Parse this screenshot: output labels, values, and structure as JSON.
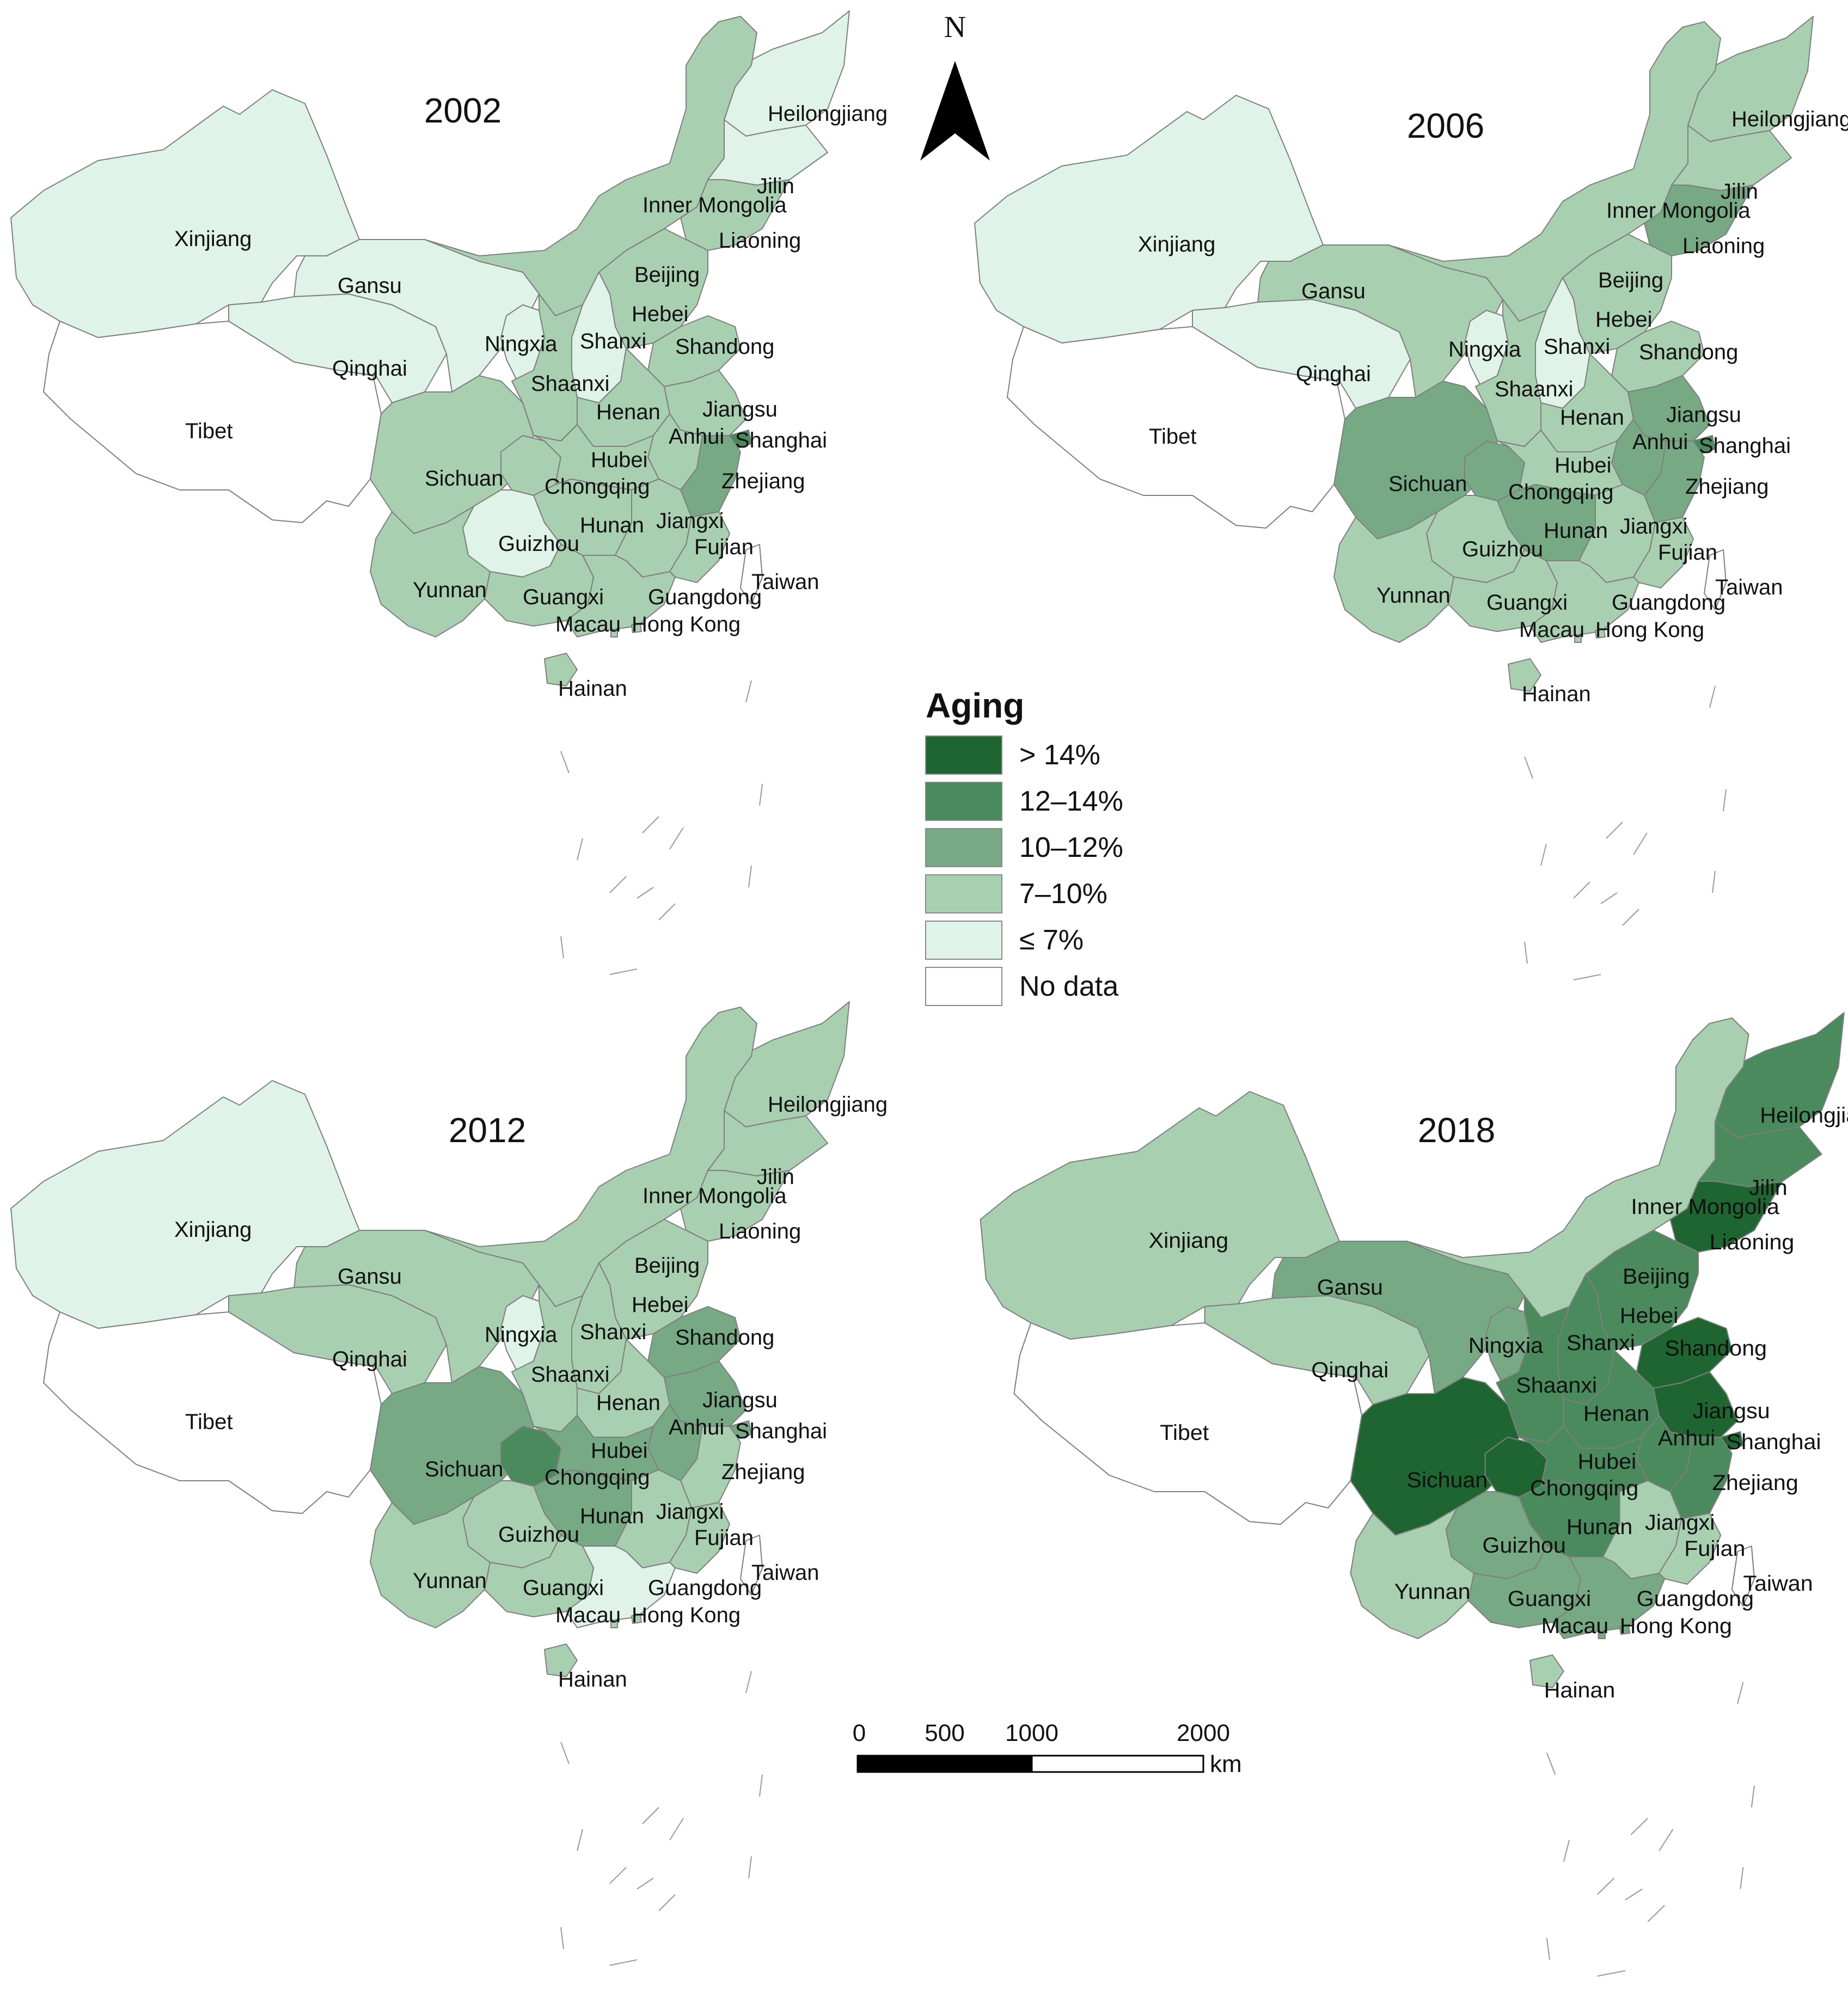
{
  "legend": {
    "title": "Aging",
    "classes": [
      {
        "label": "> 14%",
        "color": "#1f6531"
      },
      {
        "label": "12–14%",
        "color": "#4a8a5d"
      },
      {
        "label": "10–12%",
        "color": "#77a985"
      },
      {
        "label": "7–10%",
        "color": "#a9cfb1"
      },
      {
        "label": "≤ 7%",
        "color": "#dff3e8"
      },
      {
        "label": "No data",
        "color": "#ffffff"
      }
    ]
  },
  "north_arrow": {
    "label": "N"
  },
  "scale_bar": {
    "ticks": [
      "0",
      "500",
      "1000",
      "2000"
    ],
    "unit": "km"
  },
  "provinces": [
    "Heilongjiang",
    "Jilin",
    "Liaoning",
    "Inner Mongolia",
    "Xinjiang",
    "Gansu",
    "Beijing",
    "Hebei",
    "Ningxia",
    "Shanxi",
    "Shandong",
    "Qinghai",
    "Shaanxi",
    "Tibet",
    "Henan",
    "Jiangsu",
    "Anhui",
    "Shanghai",
    "Sichuan",
    "Chongqing",
    "Hubei",
    "Zhejiang",
    "Hunan",
    "Jiangxi",
    "Guizhou",
    "Fujian",
    "Yunnan",
    "Taiwan",
    "Guangxi",
    "Guangdong",
    "Macau",
    "Hong Kong",
    "Hainan"
  ],
  "maps": [
    {
      "year": "2002",
      "classes": {
        "Heilongjiang": 4,
        "Jilin": 4,
        "Liaoning": 3,
        "Inner Mongolia": 3,
        "Xinjiang": 4,
        "Gansu": 4,
        "Beijing": 2,
        "Hebei": 3,
        "Ningxia": 4,
        "Shanxi": 4,
        "Shandong": 3,
        "Qinghai": 4,
        "Shaanxi": 3,
        "Tibet": 5,
        "Henan": 3,
        "Jiangsu": 3,
        "Anhui": 3,
        "Shanghai": 1,
        "Sichuan": 3,
        "Chongqing": 3,
        "Hubei": 3,
        "Zhejiang": 2,
        "Hunan": 3,
        "Jiangxi": 3,
        "Guizhou": 4,
        "Fujian": 3,
        "Yunnan": 3,
        "Taiwan": 5,
        "Guangxi": 3,
        "Guangdong": 3,
        "Macau": 3,
        "Hong Kong": 3,
        "Hainan": 3
      }
    },
    {
      "year": "2006",
      "classes": {
        "Heilongjiang": 3,
        "Jilin": 3,
        "Liaoning": 2,
        "Inner Mongolia": 3,
        "Xinjiang": 4,
        "Gansu": 3,
        "Beijing": 2,
        "Hebei": 3,
        "Ningxia": 4,
        "Shanxi": 4,
        "Shandong": 3,
        "Qinghai": 4,
        "Shaanxi": 3,
        "Tibet": 5,
        "Henan": 3,
        "Jiangsu": 2,
        "Anhui": 2,
        "Shanghai": 1,
        "Sichuan": 2,
        "Chongqing": 2,
        "Hubei": 3,
        "Zhejiang": 2,
        "Hunan": 2,
        "Jiangxi": 3,
        "Guizhou": 3,
        "Fujian": 3,
        "Yunnan": 3,
        "Taiwan": 5,
        "Guangxi": 3,
        "Guangdong": 3,
        "Macau": 3,
        "Hong Kong": 3,
        "Hainan": 3
      }
    },
    {
      "year": "2012",
      "classes": {
        "Heilongjiang": 3,
        "Jilin": 3,
        "Liaoning": 3,
        "Inner Mongolia": 3,
        "Xinjiang": 4,
        "Gansu": 3,
        "Beijing": 3,
        "Hebei": 3,
        "Ningxia": 4,
        "Shanxi": 3,
        "Shandong": 2,
        "Qinghai": 3,
        "Shaanxi": 3,
        "Tibet": 5,
        "Henan": 3,
        "Jiangsu": 2,
        "Anhui": 2,
        "Shanghai": 2,
        "Sichuan": 2,
        "Chongqing": 1,
        "Hubei": 2,
        "Zhejiang": 3,
        "Hunan": 2,
        "Jiangxi": 3,
        "Guizhou": 3,
        "Fujian": 3,
        "Yunnan": 3,
        "Taiwan": 5,
        "Guangxi": 3,
        "Guangdong": 4,
        "Macau": 3,
        "Hong Kong": 3,
        "Hainan": 3
      }
    },
    {
      "year": "2018",
      "classes": {
        "Heilongjiang": 1,
        "Jilin": 1,
        "Liaoning": 0,
        "Inner Mongolia": 3,
        "Xinjiang": 3,
        "Gansu": 2,
        "Beijing": 1,
        "Hebei": 1,
        "Ningxia": 2,
        "Shanxi": 1,
        "Shandong": 0,
        "Qinghai": 3,
        "Shaanxi": 1,
        "Tibet": 5,
        "Henan": 1,
        "Jiangsu": 0,
        "Anhui": 1,
        "Shanghai": 0,
        "Sichuan": 0,
        "Chongqing": 0,
        "Hubei": 1,
        "Zhejiang": 1,
        "Hunan": 1,
        "Jiangxi": 3,
        "Guizhou": 2,
        "Fujian": 3,
        "Yunnan": 3,
        "Taiwan": 5,
        "Guangxi": 2,
        "Guangdong": 2,
        "Macau": 2,
        "Hong Kong": 2,
        "Hainan": 3
      }
    }
  ]
}
